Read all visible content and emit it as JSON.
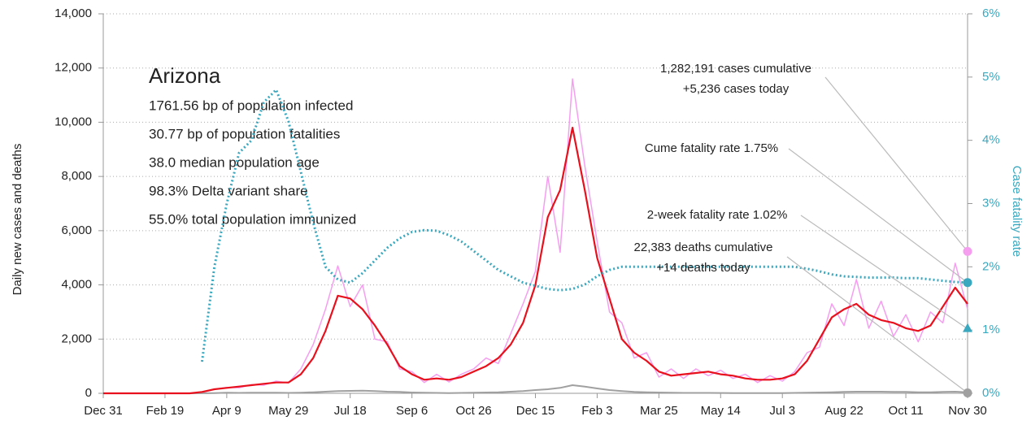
{
  "chart_data": {
    "type": "line",
    "info": {
      "title": "Arizona",
      "lines": [
        "1761.56 bp of population infected",
        "30.77 bp of population fatalities",
        "38.0 median population age",
        "98.3% Delta variant share",
        "55.0% total population immunized"
      ]
    },
    "ylabel": "Daily new cases and deaths",
    "y2label": "Case fatality rate",
    "xlim": [
      0,
      700
    ],
    "xticks": [
      {
        "value": 0,
        "label": "Dec 31"
      },
      {
        "value": 50,
        "label": "Feb 19"
      },
      {
        "value": 100,
        "label": "Apr 9"
      },
      {
        "value": 150,
        "label": "May 29"
      },
      {
        "value": 200,
        "label": "Jul 18"
      },
      {
        "value": 250,
        "label": "Sep 6"
      },
      {
        "value": 300,
        "label": "Oct 26"
      },
      {
        "value": 350,
        "label": "Dec 15"
      },
      {
        "value": 400,
        "label": "Feb 3"
      },
      {
        "value": 450,
        "label": "Mar 25"
      },
      {
        "value": 500,
        "label": "May 14"
      },
      {
        "value": 550,
        "label": "Jul 3"
      },
      {
        "value": 600,
        "label": "Aug 22"
      },
      {
        "value": 650,
        "label": "Oct 11"
      },
      {
        "value": 700,
        "label": "Nov 30"
      }
    ],
    "ylim": [
      0,
      14000
    ],
    "yticks": [
      0,
      {
        "value": 2000,
        "label": "2,000"
      },
      {
        "value": 4000,
        "label": "4,000"
      },
      {
        "value": 6000,
        "label": "6,000"
      },
      {
        "value": 8000,
        "label": "8,000"
      },
      {
        "value": 10000,
        "label": "10,000"
      },
      {
        "value": 12000,
        "label": "12,000"
      },
      {
        "value": 14000,
        "label": "14,000"
      }
    ],
    "y2lim": [
      0,
      6
    ],
    "y2ticks": [
      {
        "value": 0,
        "label": "0%"
      },
      {
        "value": 1,
        "label": "1%"
      },
      {
        "value": 2,
        "label": "2%"
      },
      {
        "value": 3,
        "label": "3%"
      },
      {
        "value": 4,
        "label": "4%"
      },
      {
        "value": 5,
        "label": "5%"
      },
      {
        "value": 6,
        "label": "6%"
      }
    ],
    "grid": true,
    "x": [
      0,
      10,
      20,
      30,
      40,
      50,
      60,
      70,
      80,
      90,
      100,
      110,
      120,
      130,
      140,
      150,
      160,
      170,
      180,
      190,
      200,
      210,
      220,
      230,
      240,
      250,
      260,
      270,
      280,
      290,
      300,
      310,
      320,
      330,
      340,
      350,
      360,
      370,
      380,
      390,
      400,
      410,
      420,
      430,
      440,
      450,
      460,
      470,
      480,
      490,
      500,
      510,
      520,
      530,
      540,
      550,
      560,
      570,
      580,
      590,
      600,
      610,
      620,
      630,
      640,
      650,
      660,
      670,
      680,
      690,
      700
    ],
    "series": [
      {
        "color": "#f59ef0",
        "width": 1.5,
        "values": [
          0,
          0,
          0,
          0,
          0,
          0,
          0,
          0,
          30,
          150,
          220,
          200,
          320,
          300,
          450,
          380,
          900,
          1800,
          3100,
          4700,
          3200,
          4000,
          2000,
          1900,
          900,
          800,
          400,
          700,
          420,
          700,
          900,
          1300,
          1100,
          2200,
          3300,
          4500,
          8000,
          5200,
          11600,
          8400,
          5600,
          3000,
          2600,
          1300,
          1500,
          600,
          900,
          550,
          900,
          650,
          850,
          550,
          700,
          400,
          650,
          450,
          800,
          1500,
          1700,
          3300,
          2500,
          4200,
          2400,
          3400,
          2100,
          2900,
          1900,
          3000,
          2600,
          4800,
          3100
        ]
      },
      {
        "color": "#a0a0a0",
        "width": 2,
        "values": [
          0,
          0,
          0,
          0,
          0,
          0,
          0,
          0,
          2,
          10,
          20,
          15,
          25,
          20,
          20,
          15,
          25,
          40,
          60,
          80,
          90,
          100,
          80,
          60,
          50,
          30,
          20,
          15,
          10,
          15,
          20,
          30,
          40,
          60,
          80,
          120,
          150,
          200,
          300,
          250,
          180,
          120,
          80,
          50,
          40,
          30,
          20,
          15,
          15,
          15,
          12,
          10,
          10,
          10,
          10,
          10,
          15,
          20,
          30,
          40,
          50,
          60,
          60,
          60,
          50,
          50,
          40,
          40,
          50,
          60,
          40
        ]
      },
      {
        "color": "#e8101c",
        "width": 2.2,
        "values": [
          0,
          0,
          0,
          0,
          0,
          0,
          0,
          0,
          50,
          150,
          200,
          250,
          300,
          350,
          400,
          400,
          700,
          1300,
          2300,
          3600,
          3500,
          3100,
          2500,
          1800,
          1000,
          700,
          500,
          550,
          500,
          600,
          800,
          1000,
          1300,
          1800,
          2600,
          4000,
          6500,
          7500,
          9800,
          7500,
          5000,
          3500,
          2000,
          1500,
          1200,
          800,
          650,
          700,
          750,
          800,
          700,
          650,
          550,
          500,
          500,
          550,
          700,
          1200,
          2000,
          2800,
          3100,
          3300,
          2900,
          2700,
          2600,
          2400,
          2300,
          2500,
          3200,
          3900,
          3300
        ]
      },
      {
        "color": "#3aa8bf",
        "width": 3,
        "dotted": true,
        "axis": "y2",
        "values": [
          null,
          null,
          null,
          null,
          null,
          null,
          null,
          null,
          0.5,
          2.0,
          3.0,
          3.8,
          4.0,
          4.6,
          4.8,
          4.3,
          3.5,
          2.7,
          2.0,
          1.8,
          1.75,
          1.9,
          2.1,
          2.3,
          2.45,
          2.55,
          2.58,
          2.57,
          2.5,
          2.4,
          2.25,
          2.1,
          1.95,
          1.85,
          1.75,
          1.7,
          1.65,
          1.63,
          1.65,
          1.72,
          1.85,
          1.95,
          2.0,
          2.0,
          2.0,
          2.0,
          2.0,
          2.0,
          2.0,
          2.0,
          2.0,
          2.0,
          2.0,
          2.0,
          2.0,
          2.0,
          2.0,
          1.97,
          1.93,
          1.88,
          1.85,
          1.84,
          1.83,
          1.83,
          1.83,
          1.82,
          1.82,
          1.8,
          1.78,
          1.76,
          1.75
        ]
      }
    ],
    "annotations": [
      {
        "lines": [
          "1,282,191 cases cumulative",
          "+5,236 cases today"
        ],
        "value": 5236,
        "marker": "circle",
        "color": "#f59ef0"
      },
      {
        "lines": [
          "Cume fatality rate 1.75%"
        ],
        "value": 1.75,
        "axis": "y2",
        "marker": "circle",
        "color": "#3aa8bf"
      },
      {
        "lines": [
          "2-week fatality rate 1.02%"
        ],
        "value": 1.02,
        "axis": "y2",
        "marker": "triangle",
        "color": "#3aa8bf"
      },
      {
        "lines": [
          "22,383 deaths cumulative",
          "+14 deaths today"
        ],
        "value": 14,
        "marker": "circle",
        "color": "#a0a0a0"
      }
    ]
  }
}
